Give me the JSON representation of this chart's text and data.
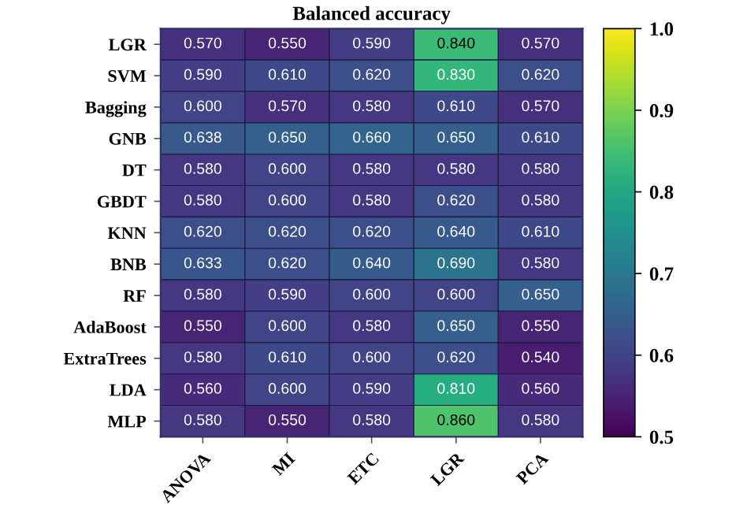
{
  "chart_data": {
    "type": "heatmap",
    "title": "Balanced accuracy",
    "categories": [
      "ANOVA",
      "MI",
      "ETC",
      "LGR",
      "PCA"
    ],
    "y_categories": [
      "LGR",
      "SVM",
      "Bagging",
      "GNB",
      "DT",
      "GBDT",
      "KNN",
      "BNB",
      "RF",
      "AdaBoost",
      "ExtraTrees",
      "LDA",
      "MLP"
    ],
    "cells": [
      [
        0.57,
        0.55,
        0.59,
        0.84,
        0.57
      ],
      [
        0.59,
        0.61,
        0.62,
        0.83,
        0.62
      ],
      [
        0.6,
        0.57,
        0.58,
        0.61,
        0.57
      ],
      [
        0.638,
        0.65,
        0.66,
        0.65,
        0.61
      ],
      [
        0.58,
        0.6,
        0.58,
        0.58,
        0.58
      ],
      [
        0.58,
        0.6,
        0.58,
        0.62,
        0.58
      ],
      [
        0.62,
        0.62,
        0.62,
        0.64,
        0.61
      ],
      [
        0.633,
        0.62,
        0.64,
        0.69,
        0.58
      ],
      [
        0.58,
        0.59,
        0.6,
        0.6,
        0.65
      ],
      [
        0.55,
        0.6,
        0.58,
        0.65,
        0.55
      ],
      [
        0.58,
        0.61,
        0.6,
        0.62,
        0.54
      ],
      [
        0.56,
        0.6,
        0.59,
        0.81,
        0.56
      ],
      [
        0.58,
        0.55,
        0.58,
        0.86,
        0.58
      ]
    ],
    "cell_labels": [
      [
        "0.570",
        "0.550",
        "0.590",
        "0.840",
        "0.570"
      ],
      [
        "0.590",
        "0.610",
        "0.620",
        "0.830",
        "0.620"
      ],
      [
        "0.600",
        "0.570",
        "0.580",
        "0.610",
        "0.570"
      ],
      [
        "0.638",
        "0.650",
        "0.660",
        "0.650",
        "0.610"
      ],
      [
        "0.580",
        "0.600",
        "0.580",
        "0.580",
        "0.580"
      ],
      [
        "0.580",
        "0.600",
        "0.580",
        "0.620",
        "0.580"
      ],
      [
        "0.620",
        "0.620",
        "0.620",
        "0.640",
        "0.610"
      ],
      [
        "0.633",
        "0.620",
        "0.640",
        "0.690",
        "0.580"
      ],
      [
        "0.580",
        "0.590",
        "0.600",
        "0.600",
        "0.650"
      ],
      [
        "0.550",
        "0.600",
        "0.580",
        "0.650",
        "0.550"
      ],
      [
        "0.580",
        "0.610",
        "0.600",
        "0.620",
        "0.540"
      ],
      [
        "0.560",
        "0.600",
        "0.590",
        "0.810",
        "0.560"
      ],
      [
        "0.580",
        "0.550",
        "0.580",
        "0.860",
        "0.580"
      ]
    ],
    "clim": [
      0.5,
      1.0
    ],
    "cticks": [
      0.5,
      0.6,
      0.7,
      0.8,
      0.9,
      {
        "value": 1,
        "label": "1.0"
      }
    ]
  }
}
